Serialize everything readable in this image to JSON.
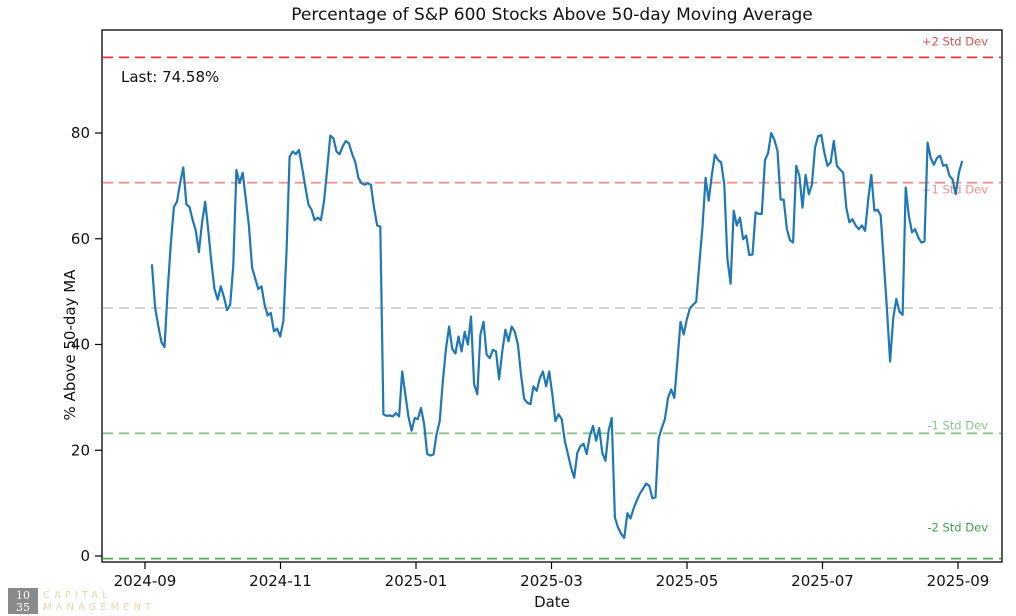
{
  "title": "Percentage of S&P 600 Stocks Above 50-day Moving Average",
  "annotation": {
    "last_label": "Last: 74.58%"
  },
  "logo": {
    "badge_line1": "10",
    "badge_line2": "35",
    "name_line1": "CAPITAL",
    "name_line2": "MANAGEMENT"
  },
  "chart_data": {
    "type": "line",
    "title": "Percentage of S&P 600 Stocks Above 50-day Moving Average",
    "xlabel": "Date",
    "ylabel": "% Above 50-day MA",
    "x_range": [
      "2024-09-03",
      "2025-09-08"
    ],
    "xticks": [
      "2024-09",
      "2024-11",
      "2025-01",
      "2025-03",
      "2025-05",
      "2025-07",
      "2025-09"
    ],
    "yticks": [
      0,
      20,
      40,
      60,
      80
    ],
    "ylim": [
      -1.1,
      99.5
    ],
    "grid": false,
    "legend": "none",
    "last_value": 74.58,
    "mean": 46.9,
    "std": 23.7,
    "reference_lines": [
      {
        "label": "+2 Std Dev",
        "value": 94.3,
        "color": "#dd3b3b",
        "label_color": "#d94f4f"
      },
      {
        "label": "+1 Std Dev",
        "value": 70.6,
        "color": "#f0938f",
        "label_color": "#ef8f8f"
      },
      {
        "label": "",
        "value": 46.9,
        "color": "#cccccc",
        "label_color": "#cccccc"
      },
      {
        "label": "-1 Std Dev",
        "value": 23.2,
        "color": "#8cc28c",
        "label_color": "#8fbf8f"
      },
      {
        "label": "-2 Std Dev",
        "value": -0.5,
        "color": "#4ea84e",
        "label_color": "#3fa04f"
      }
    ],
    "series": [
      {
        "name": "% of S&P 600 stocks above 50-day MA",
        "color": "#1f77b4",
        "values": [
          55,
          47,
          43.5,
          40.5,
          39.5,
          50,
          59,
          66,
          67,
          70.5,
          73.5,
          66.5,
          66,
          63.5,
          61.5,
          57.5,
          63,
          67,
          61.5,
          55.5,
          50.5,
          48.5,
          51,
          49,
          46.5,
          47.5,
          55,
          73,
          70.5,
          72.5,
          67.5,
          62.5,
          54.5,
          52.5,
          50.5,
          51,
          47.5,
          45.5,
          46,
          42.5,
          43,
          41.5,
          44.5,
          57.5,
          75.5,
          76.5,
          76,
          76.8,
          73.5,
          70,
          66.5,
          65.5,
          63.5,
          64,
          63.5,
          67,
          73,
          79.5,
          79,
          76.5,
          76,
          77.5,
          78.5,
          78,
          76,
          74.5,
          71.5,
          70.5,
          70.2,
          70.5,
          70.2,
          65.9,
          62.5,
          62.3,
          26.8,
          26.5,
          26.6,
          26.4,
          27,
          26.4,
          34.9,
          30.6,
          26.4,
          23.7,
          26.1,
          25.9,
          28,
          25,
          19.3,
          19,
          19.2,
          23.1,
          25.5,
          33,
          39.2,
          43.4,
          39.2,
          38.3,
          41.5,
          38.7,
          42.4,
          40,
          45.3,
          32.5,
          30.6,
          41.9,
          44.3,
          38.1,
          37.4,
          39,
          38.7,
          33.4,
          38.7,
          42.8,
          40.6,
          43.4,
          42.4,
          40,
          34.3,
          29.7,
          29,
          28.7,
          32.1,
          31.2,
          33.6,
          34.9,
          32.1,
          34.9,
          30.6,
          25.5,
          26.8,
          25.9,
          21.8,
          19.3,
          16.7,
          14.8,
          19.5,
          20.8,
          21.2,
          19.3,
          22.7,
          24.6,
          21.8,
          24.2,
          19.5,
          18,
          23.7,
          26.1,
          7.3,
          5.4,
          4.2,
          3.4,
          8.1,
          7.1,
          9,
          10.5,
          11.8,
          12.7,
          13.7,
          13.3,
          10.9,
          11.1,
          22.2,
          24.2,
          25.9,
          29.9,
          31.5,
          29.9,
          36.8,
          44.3,
          41.9,
          44.7,
          46.8,
          47.5,
          48.1,
          55.2,
          62,
          71.5,
          67.2,
          72,
          75.9,
          74.9,
          74.4,
          70.2,
          56.2,
          51.5,
          65.3,
          62.5,
          64,
          59.9,
          60.6,
          56.9,
          57,
          65,
          64.7,
          64.7,
          74.9,
          76.2,
          80,
          78.7,
          76.6,
          67.4,
          67.4,
          61.8,
          59.7,
          59.3,
          73.8,
          71.9,
          65.9,
          72.1,
          68.4,
          70.2,
          77.2,
          79.4,
          79.6,
          76.2,
          73.8,
          74.4,
          78.5,
          73.8,
          73.1,
          72.5,
          65.9,
          63.1,
          63.7,
          62.5,
          61.8,
          62.5,
          61.5,
          67.4,
          72.1,
          65.3,
          65.5,
          64.4,
          55.6,
          46.8,
          36.8,
          44.9,
          48.6,
          46.2,
          45.6,
          69.7,
          64.4,
          61.2,
          61.8,
          60.3,
          59.3,
          59.5,
          78.2,
          75.3,
          74,
          75.3,
          75.7,
          73.8,
          74,
          71.9,
          71.2,
          68.4,
          72.5,
          74.58
        ]
      }
    ]
  }
}
